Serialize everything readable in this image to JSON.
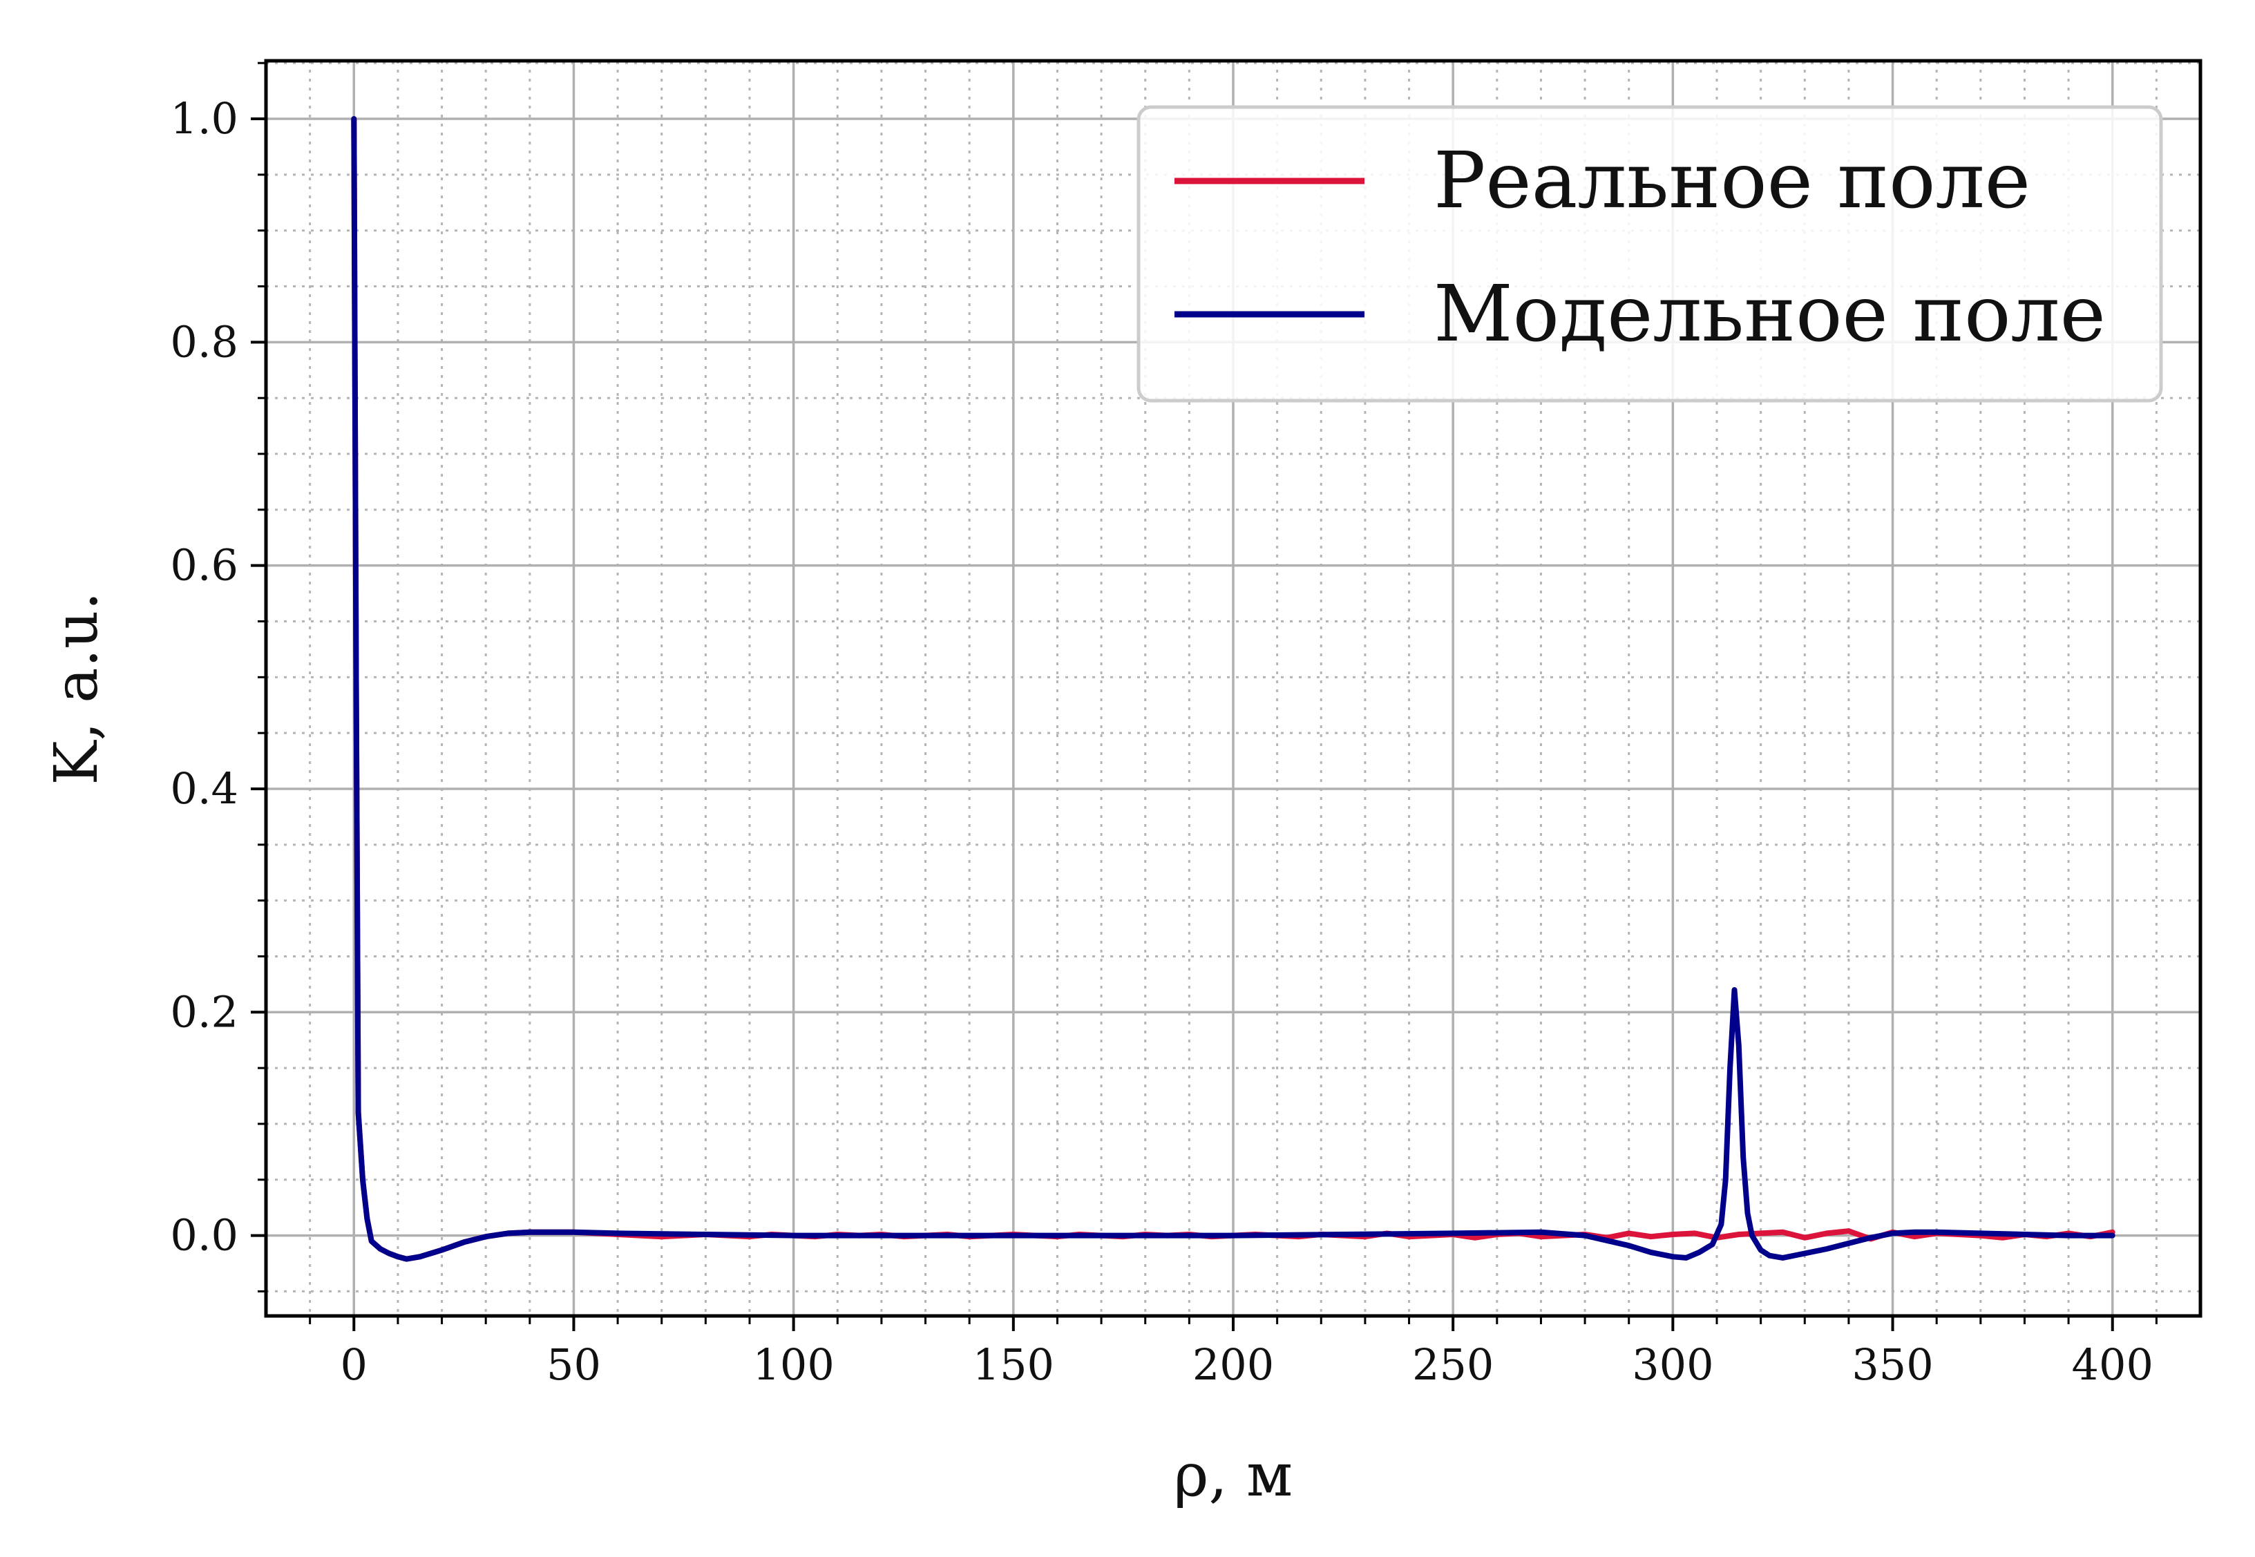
{
  "chart_data": {
    "type": "line",
    "xlabel": "ρ, м",
    "ylabel": "K, a.u.",
    "xlim": [
      -20,
      420
    ],
    "ylim": [
      -0.072,
      1.052
    ],
    "x_ticks": [
      0,
      50,
      100,
      150,
      200,
      250,
      300,
      350,
      400
    ],
    "x_tick_labels": [
      "0",
      "50",
      "100",
      "150",
      "200",
      "250",
      "300",
      "350",
      "400"
    ],
    "y_ticks": [
      0.0,
      0.2,
      0.4,
      0.6,
      0.8,
      1.0
    ],
    "y_tick_labels": [
      "0.0",
      "0.2",
      "0.4",
      "0.6",
      "0.8",
      "1.0"
    ],
    "grid": "major solid, minor dotted",
    "legend_position": "top-right",
    "series": [
      {
        "name": "Реальное поле",
        "color": "#dc143c",
        "x": [
          0,
          0.5,
          1,
          2,
          3,
          4,
          6,
          8,
          10,
          12,
          15,
          20,
          25,
          30,
          35,
          40,
          45,
          50,
          55,
          60,
          65,
          70,
          75,
          80,
          85,
          90,
          95,
          100,
          105,
          110,
          115,
          120,
          125,
          130,
          135,
          140,
          145,
          150,
          155,
          160,
          165,
          170,
          175,
          180,
          185,
          190,
          195,
          200,
          205,
          210,
          215,
          220,
          225,
          230,
          235,
          240,
          245,
          250,
          255,
          260,
          265,
          270,
          275,
          280,
          285,
          290,
          295,
          300,
          305,
          310,
          315,
          320,
          325,
          330,
          335,
          340,
          345,
          350,
          355,
          360,
          365,
          370,
          375,
          380,
          385,
          390,
          395,
          400
        ],
        "y": [
          1.0,
          0.5,
          0.11,
          0.05,
          0.015,
          -0.005,
          -0.012,
          -0.016,
          -0.019,
          -0.021,
          -0.019,
          -0.013,
          -0.006,
          -0.001,
          0.002,
          0.003,
          0.003,
          0.003,
          0.002,
          0.001,
          0.0,
          -0.001,
          0.0,
          0.001,
          0.0,
          -0.001,
          0.001,
          0.0,
          -0.001,
          0.001,
          0.0,
          0.001,
          -0.001,
          0.0,
          0.001,
          -0.001,
          0.0,
          0.001,
          0.0,
          -0.001,
          0.001,
          0.0,
          -0.001,
          0.001,
          0.0,
          0.001,
          -0.001,
          0.0,
          0.001,
          0.0,
          -0.001,
          0.001,
          0.0,
          -0.001,
          0.002,
          -0.001,
          0.0,
          0.001,
          -0.002,
          0.001,
          0.002,
          -0.001,
          0.0,
          0.001,
          -0.002,
          0.002,
          -0.001,
          0.001,
          0.002,
          -0.002,
          0.001,
          0.002,
          0.003,
          -0.002,
          0.002,
          0.004,
          -0.003,
          0.003,
          -0.001,
          0.002,
          0.001,
          0.0,
          -0.002,
          0.001,
          -0.001,
          0.002,
          -0.001,
          0.003
        ]
      },
      {
        "name": "Модельное поле",
        "color": "#00008b",
        "x": [
          0,
          0.5,
          1,
          2,
          3,
          4,
          6,
          8,
          10,
          12,
          15,
          20,
          25,
          30,
          35,
          40,
          45,
          50,
          60,
          80,
          100,
          150,
          200,
          250,
          270,
          280,
          290,
          295,
          300,
          303,
          306,
          309,
          311,
          312,
          313,
          314,
          315,
          316,
          317,
          318,
          320,
          322,
          325,
          330,
          335,
          340,
          345,
          350,
          355,
          360,
          370,
          380,
          390,
          400
        ],
        "y": [
          1.0,
          0.5,
          0.11,
          0.05,
          0.015,
          -0.005,
          -0.012,
          -0.016,
          -0.019,
          -0.021,
          -0.019,
          -0.013,
          -0.006,
          -0.001,
          0.002,
          0.003,
          0.003,
          0.003,
          0.002,
          0.001,
          0.0,
          0.0,
          0.0,
          0.002,
          0.003,
          0.0,
          -0.009,
          -0.015,
          -0.019,
          -0.02,
          -0.015,
          -0.008,
          0.01,
          0.05,
          0.15,
          0.22,
          0.17,
          0.07,
          0.02,
          0.0,
          -0.013,
          -0.018,
          -0.02,
          -0.016,
          -0.012,
          -0.007,
          -0.002,
          0.002,
          0.003,
          0.003,
          0.002,
          0.001,
          0.0,
          0.0
        ]
      }
    ]
  }
}
